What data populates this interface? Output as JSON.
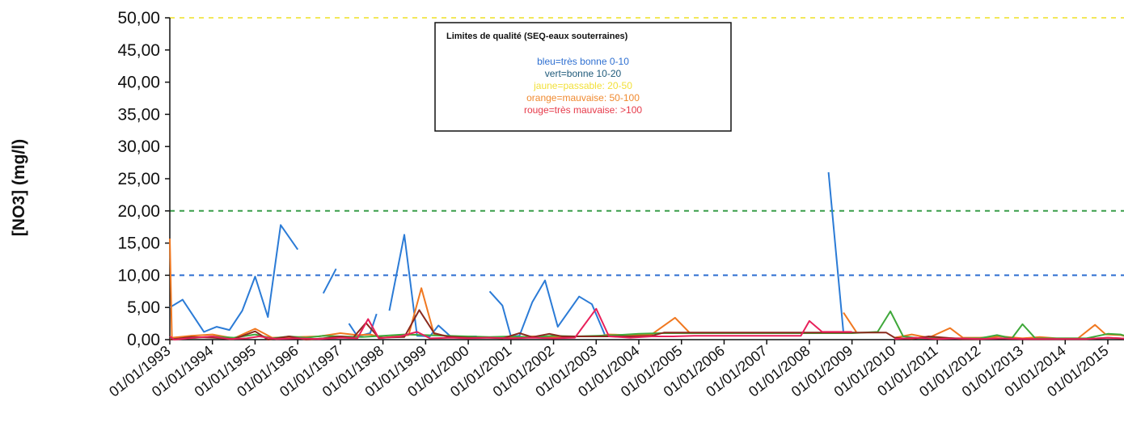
{
  "chart_data": {
    "type": "line",
    "ylabel": "[NO3] (mg/l)",
    "xlabel": "",
    "ylim": [
      0,
      50
    ],
    "y_ticks": [
      "50,00",
      "45,00",
      "40,00",
      "35,00",
      "30,00",
      "25,00",
      "20,00",
      "15,00",
      "10,00",
      "5,00",
      "0,00"
    ],
    "x_ticks": [
      "01/01/1993",
      "01/01/1994",
      "01/01/1995",
      "01/01/1996",
      "01/01/1997",
      "01/01/1998",
      "01/01/1999",
      "01/01/2000",
      "01/01/2001",
      "01/01/2002",
      "01/01/2003",
      "01/01/2004",
      "01/01/2005",
      "01/01/2006",
      "01/01/2007",
      "01/01/2008",
      "01/01/2009",
      "01/01/2010",
      "01/01/2011",
      "01/01/2012",
      "01/01/2013",
      "01/01/2014",
      "01/01/2015"
    ],
    "thresholds": [
      {
        "value": 50,
        "color": "#f2e85a"
      },
      {
        "value": 20,
        "color": "#3a9e4a"
      },
      {
        "value": 10,
        "color": "#2e6fd1"
      }
    ],
    "legend": {
      "title": "Limites de qualité (SEQ-eaux souterraines)",
      "items": [
        {
          "text": "bleu=très bonne 0-10",
          "color": "#2e6fd1"
        },
        {
          "text": "vert=bonne 10-20",
          "color": "#1f5a7a"
        },
        {
          "text": "jaune=passable: 20-50",
          "color": "#f2e03a"
        },
        {
          "text": "orange=mauvaise: 50-100",
          "color": "#f08a30"
        },
        {
          "text": "rouge=très mauvaise: >100",
          "color": "#e63a4a"
        }
      ]
    },
    "series": [
      {
        "color": "#2b7bd6",
        "segments": [
          [
            [
              1993.0,
              5.0
            ],
            [
              1993.3,
              6.2
            ],
            [
              1993.8,
              1.2
            ],
            [
              1994.1,
              2.0
            ],
            [
              1994.4,
              1.5
            ],
            [
              1994.7,
              4.5
            ],
            [
              1995.0,
              9.8
            ],
            [
              1995.3,
              3.5
            ],
            [
              1995.6,
              17.8
            ],
            [
              1996.0,
              14.0
            ]
          ],
          [
            [
              1996.6,
              7.2
            ],
            [
              1996.9,
              11.0
            ]
          ],
          [
            [
              1997.2,
              2.5
            ],
            [
              1997.4,
              0.5
            ],
            [
              1997.7,
              1.0
            ],
            [
              1997.85,
              4.0
            ]
          ],
          [
            [
              1998.15,
              4.5
            ],
            [
              1998.5,
              16.3
            ],
            [
              1998.8,
              0.6
            ],
            [
              1999.1,
              0.5
            ],
            [
              1999.3,
              2.2
            ],
            [
              1999.6,
              0.4
            ],
            [
              2000.0,
              0.5
            ],
            [
              2000.2,
              0.5
            ]
          ],
          [
            [
              2000.5,
              7.5
            ],
            [
              2000.8,
              5.3
            ],
            [
              2001.0,
              0.5
            ],
            [
              2001.2,
              0.6
            ],
            [
              2001.5,
              5.8
            ],
            [
              2001.8,
              9.2
            ],
            [
              2002.1,
              2.0
            ],
            [
              2002.6,
              6.7
            ],
            [
              2002.9,
              5.5
            ],
            [
              2003.2,
              0.8
            ]
          ],
          [
            [
              2008.45,
              26.0
            ],
            [
              2008.8,
              1.0
            ]
          ]
        ]
      },
      {
        "color": "#f07820",
        "segments": [
          [
            [
              1993.0,
              15.7
            ],
            [
              1993.05,
              0.3
            ],
            [
              1993.5,
              0.6
            ],
            [
              1994.0,
              0.8
            ],
            [
              1994.5,
              0.2
            ],
            [
              1995.0,
              1.7
            ],
            [
              1995.4,
              0.3
            ],
            [
              1996.0,
              0.4
            ],
            [
              1996.5,
              0.5
            ],
            [
              1997.0,
              1.0
            ],
            [
              1997.4,
              0.7
            ],
            [
              1997.7,
              0.8
            ],
            [
              1998.0,
              0.3
            ],
            [
              1998.3,
              0.5
            ],
            [
              1998.6,
              0.7
            ],
            [
              1998.9,
              8.0
            ],
            [
              1999.2,
              0.8
            ],
            [
              1999.5,
              0.6
            ],
            [
              2000.0,
              0.4
            ],
            [
              2000.5,
              0.3
            ],
            [
              2001.0,
              0.3
            ],
            [
              2001.5,
              0.5
            ],
            [
              2002.0,
              0.4
            ],
            [
              2002.5,
              0.5
            ],
            [
              2003.0,
              0.5
            ],
            [
              2003.3,
              0.8
            ],
            [
              2003.8,
              0.7
            ],
            [
              2004.3,
              0.8
            ],
            [
              2004.85,
              3.4
            ],
            [
              2005.2,
              1.0
            ]
          ],
          [
            [
              2008.8,
              4.2
            ],
            [
              2009.1,
              1.2
            ]
          ],
          [
            [
              2010.0,
              0.3
            ],
            [
              2010.4,
              0.8
            ],
            [
              2010.8,
              0.3
            ],
            [
              2011.3,
              1.8
            ],
            [
              2011.6,
              0.3
            ],
            [
              2012.0,
              0.3
            ],
            [
              2012.5,
              0.5
            ],
            [
              2013.0,
              0.2
            ],
            [
              2013.4,
              0.4
            ],
            [
              2013.8,
              0.2
            ],
            [
              2014.3,
              0.2
            ],
            [
              2014.7,
              2.3
            ],
            [
              2014.95,
              0.8
            ],
            [
              2015.3,
              0.7
            ],
            [
              2015.6,
              0.2
            ]
          ]
        ]
      },
      {
        "color": "#3fa83a",
        "segments": [
          [
            [
              1993.0,
              0.1
            ],
            [
              1993.5,
              0.2
            ],
            [
              1994.0,
              0.5
            ],
            [
              1994.5,
              0.3
            ],
            [
              1995.0,
              0.8
            ],
            [
              1995.4,
              0.2
            ],
            [
              1995.8,
              0.5
            ],
            [
              1996.2,
              0.3
            ],
            [
              1996.6,
              0.6
            ],
            [
              1997.0,
              0.5
            ],
            [
              1997.5,
              0.4
            ],
            [
              1998.0,
              0.6
            ],
            [
              1998.5,
              0.8
            ],
            [
              1999.0,
              0.7
            ],
            [
              1999.5,
              0.6
            ],
            [
              2000.0,
              0.5
            ],
            [
              2000.5,
              0.4
            ],
            [
              2001.0,
              0.5
            ],
            [
              2001.5,
              0.4
            ],
            [
              2002.0,
              0.6
            ],
            [
              2002.5,
              0.5
            ],
            [
              2003.0,
              0.6
            ],
            [
              2003.5,
              0.7
            ],
            [
              2004.0,
              0.9
            ],
            [
              2004.5,
              1.0
            ],
            [
              2005.0,
              1.0
            ],
            [
              2006.0,
              1.0
            ],
            [
              2007.0,
              1.0
            ],
            [
              2008.0,
              1.0
            ],
            [
              2009.0,
              1.0
            ],
            [
              2009.6,
              1.2
            ],
            [
              2009.9,
              4.4
            ],
            [
              2010.2,
              0.5
            ],
            [
              2010.6,
              0.2
            ],
            [
              2011.0,
              0.3
            ],
            [
              2011.5,
              0.2
            ],
            [
              2012.0,
              0.2
            ],
            [
              2012.4,
              0.7
            ],
            [
              2012.75,
              0.2
            ],
            [
              2013.0,
              2.4
            ],
            [
              2013.3,
              0.2
            ],
            [
              2013.8,
              0.2
            ],
            [
              2014.5,
              0.2
            ],
            [
              2015.0,
              0.9
            ],
            [
              2015.3,
              0.8
            ],
            [
              2015.6,
              0.2
            ]
          ]
        ]
      },
      {
        "color": "#8a2a1e",
        "segments": [
          [
            [
              1993.0,
              0.0
            ],
            [
              1993.5,
              0.4
            ],
            [
              1994.0,
              0.3
            ],
            [
              1994.5,
              0.1
            ],
            [
              1995.0,
              1.3
            ],
            [
              1995.3,
              0.0
            ],
            [
              1995.8,
              0.5
            ],
            [
              1996.2,
              0.0
            ],
            [
              1996.6,
              0.2
            ],
            [
              1997.0,
              0.5
            ],
            [
              1997.3,
              0.3
            ],
            [
              1997.6,
              2.6
            ],
            [
              1997.9,
              0.3
            ],
            [
              1998.5,
              0.4
            ],
            [
              1998.85,
              4.6
            ],
            [
              1999.2,
              1.0
            ],
            [
              1999.5,
              0.5
            ],
            [
              2000.0,
              0.3
            ],
            [
              2000.5,
              0.3
            ],
            [
              2000.8,
              0.2
            ],
            [
              2001.2,
              1.0
            ],
            [
              2001.5,
              0.4
            ],
            [
              2001.9,
              0.9
            ],
            [
              2002.2,
              0.5
            ],
            [
              2002.8,
              0.5
            ],
            [
              2003.2,
              0.5
            ],
            [
              2003.8,
              0.5
            ],
            [
              2004.3,
              0.6
            ],
            [
              2004.6,
              1.1
            ],
            [
              2005.0,
              1.1
            ],
            [
              2005.5,
              1.1
            ],
            [
              2006.0,
              1.1
            ],
            [
              2006.5,
              1.1
            ],
            [
              2007.0,
              1.1
            ],
            [
              2007.5,
              1.1
            ],
            [
              2008.0,
              1.1
            ],
            [
              2008.5,
              1.1
            ],
            [
              2009.0,
              1.1
            ],
            [
              2009.5,
              1.1
            ],
            [
              2009.8,
              1.1
            ],
            [
              2010.0,
              0.3
            ],
            [
              2010.4,
              0.1
            ],
            [
              2010.8,
              0.5
            ],
            [
              2011.2,
              0.3
            ],
            [
              2011.6,
              0.1
            ],
            [
              2012.0,
              0.1
            ],
            [
              2012.5,
              0.2
            ],
            [
              2013.0,
              0.1
            ],
            [
              2013.5,
              0.1
            ],
            [
              2014.0,
              0.1
            ],
            [
              2014.5,
              0.1
            ],
            [
              2015.0,
              0.3
            ],
            [
              2015.6,
              0.1
            ]
          ]
        ]
      },
      {
        "color": "#e8205a",
        "segments": [
          [
            [
              1993.0,
              0.5
            ],
            [
              1993.1,
              0.0
            ],
            [
              1993.6,
              0.3
            ],
            [
              1994.0,
              0.5
            ],
            [
              1994.4,
              0.1
            ],
            [
              1994.8,
              0.2
            ],
            [
              1995.1,
              0.5
            ],
            [
              1995.5,
              0.1
            ],
            [
              1996.0,
              0.2
            ],
            [
              1996.5,
              0.1
            ],
            [
              1997.0,
              0.3
            ],
            [
              1997.4,
              0.2
            ],
            [
              1997.65,
              3.2
            ],
            [
              1997.9,
              0.2
            ],
            [
              1998.4,
              0.5
            ],
            [
              1998.8,
              1.2
            ],
            [
              1999.1,
              0.2
            ],
            [
              1999.6,
              0.3
            ],
            [
              2000.0,
              0.2
            ],
            [
              2000.5,
              0.3
            ],
            [
              2001.0,
              0.2
            ],
            [
              2001.5,
              0.3
            ],
            [
              2002.0,
              0.2
            ],
            [
              2002.5,
              0.3
            ],
            [
              2003.0,
              4.8
            ],
            [
              2003.3,
              0.5
            ],
            [
              2003.8,
              0.3
            ],
            [
              2004.3,
              0.5
            ],
            [
              2004.8,
              0.5
            ],
            [
              2005.3,
              0.6
            ],
            [
              2005.8,
              0.6
            ],
            [
              2006.3,
              0.6
            ],
            [
              2006.8,
              0.6
            ],
            [
              2007.3,
              0.6
            ],
            [
              2007.8,
              0.6
            ],
            [
              2008.0,
              2.9
            ],
            [
              2008.3,
              1.2
            ],
            [
              2008.8,
              1.2
            ],
            [
              2009.0,
              1.2
            ]
          ],
          [
            [
              2010.0,
              0.1
            ],
            [
              2010.5,
              0.3
            ],
            [
              2011.0,
              0.1
            ],
            [
              2011.5,
              0.2
            ],
            [
              2012.0,
              0.1
            ],
            [
              2012.5,
              0.2
            ],
            [
              2013.0,
              0.1
            ],
            [
              2013.5,
              0.1
            ],
            [
              2014.0,
              0.1
            ],
            [
              2014.5,
              0.1
            ],
            [
              2015.0,
              0.3
            ],
            [
              2015.6,
              0.1
            ]
          ]
        ]
      }
    ]
  }
}
